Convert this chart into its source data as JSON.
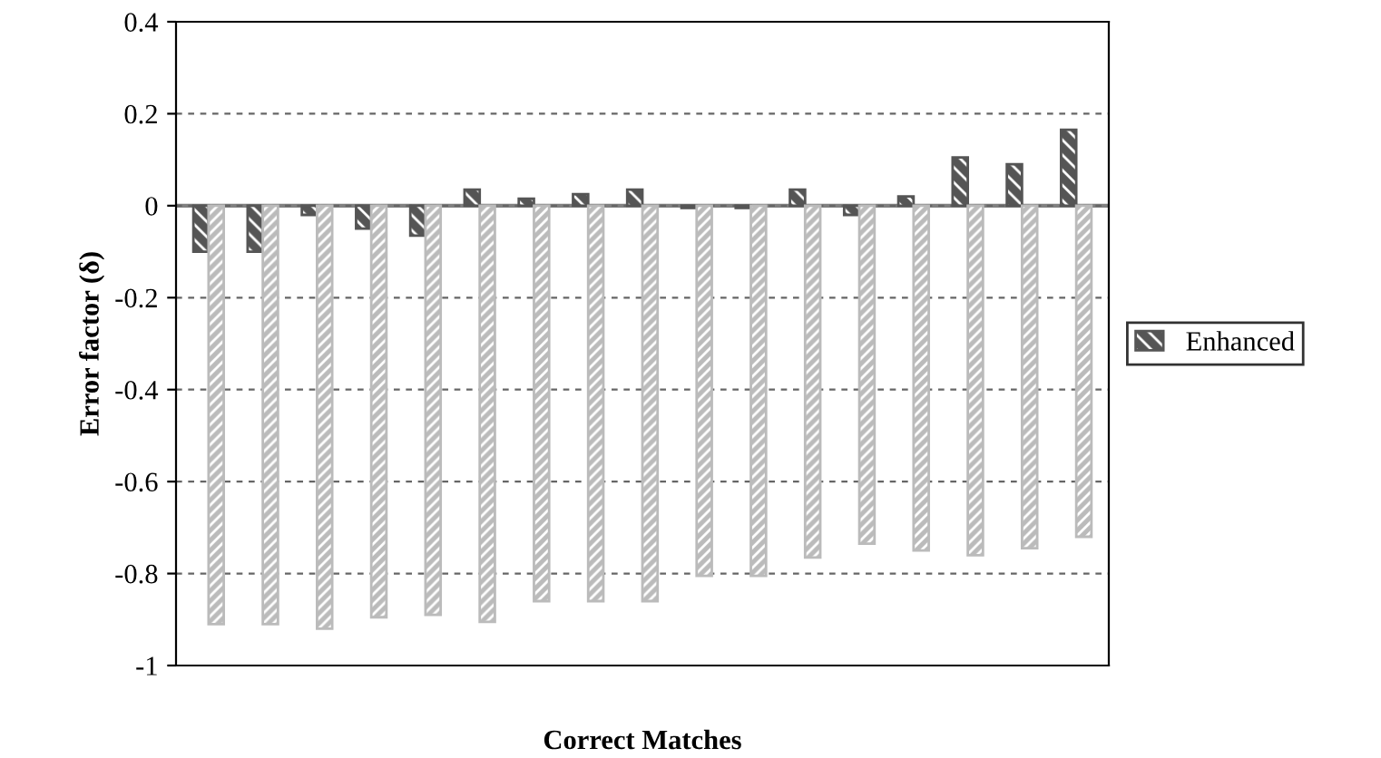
{
  "chart_data": {
    "type": "bar",
    "xlabel": "Correct Matches",
    "ylabel": "Error factor (δ)",
    "categories": [
      null,
      null,
      null,
      null,
      null,
      null,
      null,
      null,
      null,
      null,
      null,
      null,
      null,
      null,
      null,
      null,
      null
    ],
    "series": [
      {
        "name": "Enhanced",
        "color": "#555555",
        "values": [
          -0.1,
          -0.1,
          -0.02,
          -0.05,
          -0.065,
          0.035,
          0.015,
          0.025,
          0.035,
          -0.005,
          -0.005,
          0.035,
          -0.02,
          0.02,
          0.105,
          0.09,
          0.165
        ]
      },
      {
        "color": "#bbbbbb",
        "values": [
          -0.91,
          -0.91,
          -0.92,
          -0.895,
          -0.89,
          -0.905,
          -0.86,
          -0.86,
          -0.86,
          -0.805,
          -0.805,
          -0.765,
          -0.735,
          -0.75,
          -0.76,
          -0.745,
          -0.72
        ]
      }
    ],
    "ylim": [
      -1,
      0.4
    ],
    "yticks": [
      -1,
      -0.8,
      -0.6,
      -0.4,
      -0.2,
      0,
      0.2,
      0.4
    ],
    "grid": "y",
    "legend": "right"
  }
}
